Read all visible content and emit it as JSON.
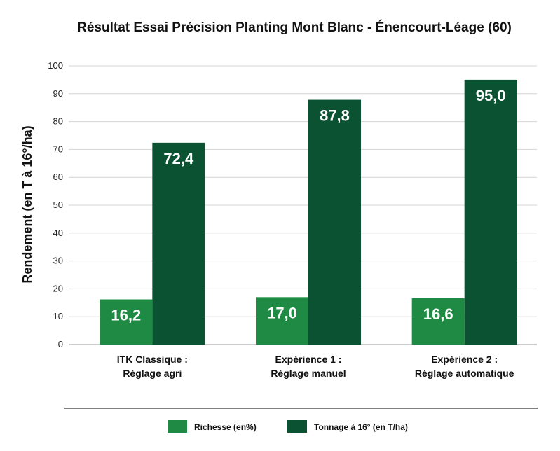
{
  "chart_data": {
    "type": "bar",
    "title": "Résultat Essai Précision Planting Mont Blanc - Énencourt-Léage (60)",
    "ylabel": "Rendement (en T à 16°/ha)",
    "xlabel": "",
    "ylim": [
      0,
      100
    ],
    "yticks": [
      0,
      10,
      20,
      30,
      40,
      50,
      60,
      70,
      80,
      90,
      100
    ],
    "grid": true,
    "legend_position": "bottom",
    "categories": [
      [
        "ITK Classique :",
        "Réglage agri"
      ],
      [
        "Expérience 1 :",
        "Réglage manuel"
      ],
      [
        "Expérience 2 :",
        "Réglage automatique"
      ]
    ],
    "series": [
      {
        "name": "Richesse (en%)",
        "color": "#1f8a43",
        "values": [
          16.2,
          17.0,
          16.6
        ],
        "labels": [
          "16,2",
          "17,0",
          "16,6"
        ]
      },
      {
        "name": "Tonnage à 16° (en T/ha)",
        "color": "#0b5233",
        "values": [
          72.4,
          87.8,
          95.0
        ],
        "labels": [
          "72,4",
          "87,8",
          "95,0"
        ]
      }
    ]
  }
}
